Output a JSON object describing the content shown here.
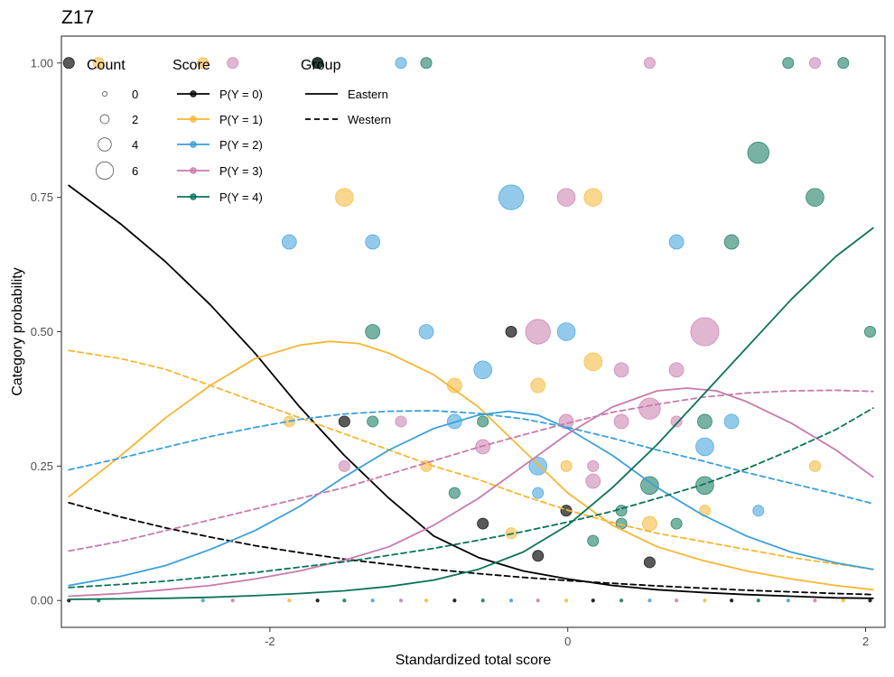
{
  "chart_data": {
    "type": "scatter",
    "title": "Z17",
    "xlabel": "Standardized total score",
    "ylabel": "Category probability",
    "xlim": [
      -3.4,
      2.13
    ],
    "ylim": [
      -0.05,
      1.05
    ],
    "x_ticks": [
      -2,
      0,
      2
    ],
    "x_tick_labels": [
      "-2",
      "0",
      "2"
    ],
    "y_ticks": [
      0,
      0.25,
      0.5,
      0.75,
      1
    ],
    "y_tick_labels": [
      "0.00",
      "0.25",
      "0.50",
      "0.75",
      "1.00"
    ],
    "grid": false,
    "legend_position": "top-left inside",
    "colors": {
      "P(Y = 0)": "#000000",
      "P(Y = 1)": "#F5B731",
      "P(Y = 2)": "#3A9FDB",
      "P(Y = 3)": "#C97AAA",
      "P(Y = 4)": "#0A7358"
    },
    "legend": {
      "count": {
        "title": "Count",
        "labels": [
          "0",
          "2",
          "4",
          "6"
        ]
      },
      "score": {
        "title": "Score",
        "labels": [
          "P(Y = 0)",
          "P(Y = 1)",
          "P(Y = 2)",
          "P(Y = 3)",
          "P(Y = 4)"
        ]
      },
      "group": {
        "title": "Group",
        "labels": [
          "Eastern",
          "Western"
        ]
      }
    },
    "curves": [
      {
        "score": "P(Y = 0)",
        "group": "Eastern",
        "x": [
          -3.35,
          -3.0,
          -2.7,
          -2.4,
          -2.1,
          -1.8,
          -1.5,
          -1.2,
          -0.9,
          -0.6,
          -0.3,
          0.0,
          0.3,
          0.6,
          0.9,
          1.2,
          1.5,
          1.8,
          2.05
        ],
        "y": [
          0.772,
          0.7,
          0.63,
          0.55,
          0.46,
          0.36,
          0.27,
          0.19,
          0.12,
          0.08,
          0.055,
          0.04,
          0.028,
          0.02,
          0.015,
          0.011,
          0.008,
          0.005,
          0.004
        ]
      },
      {
        "score": "P(Y = 0)",
        "group": "Western",
        "x": [
          -3.35,
          -3.0,
          -2.7,
          -2.4,
          -2.1,
          -1.8,
          -1.5,
          -1.2,
          -0.9,
          -0.6,
          -0.3,
          0.0,
          0.3,
          0.6,
          0.9,
          1.2,
          1.5,
          1.8,
          2.05
        ],
        "y": [
          0.182,
          0.155,
          0.135,
          0.118,
          0.102,
          0.089,
          0.077,
          0.067,
          0.058,
          0.05,
          0.043,
          0.037,
          0.032,
          0.027,
          0.023,
          0.019,
          0.016,
          0.013,
          0.011
        ]
      },
      {
        "score": "P(Y = 1)",
        "group": "Eastern",
        "x": [
          -3.35,
          -3.0,
          -2.7,
          -2.4,
          -2.1,
          -1.8,
          -1.6,
          -1.4,
          -1.2,
          -0.9,
          -0.6,
          -0.3,
          0.0,
          0.3,
          0.6,
          0.9,
          1.2,
          1.5,
          1.8,
          2.05
        ],
        "y": [
          0.193,
          0.27,
          0.34,
          0.4,
          0.45,
          0.475,
          0.482,
          0.478,
          0.46,
          0.42,
          0.36,
          0.28,
          0.2,
          0.14,
          0.1,
          0.075,
          0.055,
          0.04,
          0.028,
          0.02
        ]
      },
      {
        "score": "P(Y = 1)",
        "group": "Western",
        "x": [
          -3.35,
          -3.0,
          -2.7,
          -2.4,
          -2.1,
          -1.8,
          -1.5,
          -1.2,
          -0.9,
          -0.6,
          -0.3,
          0.0,
          0.3,
          0.6,
          0.9,
          1.2,
          1.5,
          1.8,
          2.05
        ],
        "y": [
          0.465,
          0.45,
          0.43,
          0.4,
          0.37,
          0.34,
          0.31,
          0.28,
          0.25,
          0.225,
          0.195,
          0.168,
          0.145,
          0.125,
          0.11,
          0.095,
          0.08,
          0.068,
          0.058
        ]
      },
      {
        "score": "P(Y = 2)",
        "group": "Eastern",
        "x": [
          -3.35,
          -3.0,
          -2.7,
          -2.4,
          -2.1,
          -1.8,
          -1.5,
          -1.2,
          -0.9,
          -0.6,
          -0.4,
          -0.2,
          0.0,
          0.3,
          0.6,
          0.9,
          1.2,
          1.5,
          1.8,
          2.05
        ],
        "y": [
          0.028,
          0.045,
          0.065,
          0.095,
          0.13,
          0.175,
          0.23,
          0.28,
          0.32,
          0.345,
          0.352,
          0.345,
          0.32,
          0.27,
          0.21,
          0.16,
          0.12,
          0.09,
          0.07,
          0.058
        ]
      },
      {
        "score": "P(Y = 2)",
        "group": "Western",
        "x": [
          -3.35,
          -3.0,
          -2.7,
          -2.4,
          -2.1,
          -1.8,
          -1.5,
          -1.2,
          -0.9,
          -0.6,
          -0.3,
          0.0,
          0.3,
          0.6,
          0.9,
          1.2,
          1.5,
          1.8,
          2.05
        ],
        "y": [
          0.243,
          0.265,
          0.285,
          0.305,
          0.322,
          0.337,
          0.347,
          0.352,
          0.353,
          0.348,
          0.338,
          0.322,
          0.302,
          0.28,
          0.26,
          0.238,
          0.218,
          0.198,
          0.18
        ]
      },
      {
        "score": "P(Y = 3)",
        "group": "Eastern",
        "x": [
          -3.35,
          -3.0,
          -2.7,
          -2.4,
          -2.1,
          -1.8,
          -1.5,
          -1.2,
          -0.9,
          -0.6,
          -0.3,
          0.0,
          0.3,
          0.6,
          0.8,
          1.0,
          1.2,
          1.5,
          1.8,
          2.05
        ],
        "y": [
          0.008,
          0.013,
          0.02,
          0.028,
          0.04,
          0.055,
          0.075,
          0.1,
          0.14,
          0.19,
          0.25,
          0.31,
          0.36,
          0.39,
          0.395,
          0.39,
          0.37,
          0.33,
          0.28,
          0.23
        ]
      },
      {
        "score": "P(Y = 3)",
        "group": "Western",
        "x": [
          -3.35,
          -3.0,
          -2.7,
          -2.4,
          -2.1,
          -1.8,
          -1.5,
          -1.2,
          -0.9,
          -0.6,
          -0.3,
          0.0,
          0.3,
          0.6,
          0.9,
          1.2,
          1.5,
          1.8,
          2.05
        ],
        "y": [
          0.092,
          0.11,
          0.13,
          0.15,
          0.17,
          0.19,
          0.21,
          0.235,
          0.26,
          0.285,
          0.308,
          0.33,
          0.35,
          0.365,
          0.378,
          0.386,
          0.39,
          0.391,
          0.389
        ]
      },
      {
        "score": "P(Y = 4)",
        "group": "Eastern",
        "x": [
          -3.35,
          -3.0,
          -2.7,
          -2.4,
          -2.1,
          -1.8,
          -1.5,
          -1.2,
          -0.9,
          -0.6,
          -0.3,
          0.0,
          0.3,
          0.6,
          0.9,
          1.2,
          1.5,
          1.8,
          2.05
        ],
        "y": [
          0.002,
          0.003,
          0.004,
          0.006,
          0.009,
          0.013,
          0.018,
          0.026,
          0.038,
          0.058,
          0.09,
          0.14,
          0.21,
          0.29,
          0.38,
          0.47,
          0.56,
          0.64,
          0.693
        ]
      },
      {
        "score": "P(Y = 4)",
        "group": "Western",
        "x": [
          -3.35,
          -3.0,
          -2.7,
          -2.4,
          -2.1,
          -1.8,
          -1.5,
          -1.2,
          -0.9,
          -0.6,
          -0.3,
          0.0,
          0.3,
          0.6,
          0.9,
          1.2,
          1.5,
          1.8,
          2.05
        ],
        "y": [
          0.024,
          0.03,
          0.036,
          0.044,
          0.052,
          0.062,
          0.072,
          0.084,
          0.097,
          0.112,
          0.128,
          0.146,
          0.166,
          0.19,
          0.215,
          0.245,
          0.28,
          0.318,
          0.358
        ]
      }
    ],
    "points": [
      {
        "score": "P(Y = 0)",
        "x": -3.35,
        "y": 1.0,
        "count": 1
      },
      {
        "score": "P(Y = 1)",
        "x": -3.15,
        "y": 1.0,
        "count": 1
      },
      {
        "score": "P(Y = 1)",
        "x": -2.45,
        "y": 1.0,
        "count": 1
      },
      {
        "score": "P(Y = 3)",
        "x": -2.25,
        "y": 1.0,
        "count": 1
      },
      {
        "score": "P(Y = 4)",
        "x": -1.68,
        "y": 1.0,
        "count": 1
      },
      {
        "score": "P(Y = 0)",
        "x": -1.68,
        "y": 1.0,
        "count": 1
      },
      {
        "score": "P(Y = 2)",
        "x": -1.12,
        "y": 1.0,
        "count": 1
      },
      {
        "score": "P(Y = 4)",
        "x": -0.95,
        "y": 1.0,
        "count": 1
      },
      {
        "score": "P(Y = 3)",
        "x": 0.55,
        "y": 1.0,
        "count": 1
      },
      {
        "score": "P(Y = 4)",
        "x": 1.48,
        "y": 1.0,
        "count": 1
      },
      {
        "score": "P(Y = 3)",
        "x": 1.66,
        "y": 1.0,
        "count": 1
      },
      {
        "score": "P(Y = 4)",
        "x": 1.85,
        "y": 1.0,
        "count": 1
      },
      {
        "score": "P(Y = 4)",
        "x": 1.28,
        "y": 0.833,
        "count": 4
      },
      {
        "score": "P(Y = 1)",
        "x": -1.5,
        "y": 0.75,
        "count": 3
      },
      {
        "score": "P(Y = 2)",
        "x": -0.38,
        "y": 0.75,
        "count": 5
      },
      {
        "score": "P(Y = 3)",
        "x": -0.01,
        "y": 0.75,
        "count": 3
      },
      {
        "score": "P(Y = 1)",
        "x": 0.17,
        "y": 0.75,
        "count": 3
      },
      {
        "score": "P(Y = 4)",
        "x": 1.66,
        "y": 0.75,
        "count": 3
      },
      {
        "score": "P(Y = 2)",
        "x": -1.87,
        "y": 0.667,
        "count": 2
      },
      {
        "score": "P(Y = 2)",
        "x": -1.31,
        "y": 0.667,
        "count": 2
      },
      {
        "score": "P(Y = 2)",
        "x": 0.73,
        "y": 0.667,
        "count": 2
      },
      {
        "score": "P(Y = 4)",
        "x": 1.1,
        "y": 0.667,
        "count": 2
      },
      {
        "score": "P(Y = 4)",
        "x": -1.31,
        "y": 0.5,
        "count": 2
      },
      {
        "score": "P(Y = 2)",
        "x": -0.95,
        "y": 0.5,
        "count": 2
      },
      {
        "score": "P(Y = 0)",
        "x": -0.38,
        "y": 0.5,
        "count": 1
      },
      {
        "score": "P(Y = 3)",
        "x": -0.2,
        "y": 0.5,
        "count": 5
      },
      {
        "score": "P(Y = 2)",
        "x": -0.01,
        "y": 0.5,
        "count": 3
      },
      {
        "score": "P(Y = 3)",
        "x": 0.92,
        "y": 0.5,
        "count": 6
      },
      {
        "score": "P(Y = 4)",
        "x": 2.03,
        "y": 0.5,
        "count": 1
      },
      {
        "score": "P(Y = 1)",
        "x": 0.17,
        "y": 0.444,
        "count": 3
      },
      {
        "score": "P(Y = 2)",
        "x": -0.57,
        "y": 0.429,
        "count": 3
      },
      {
        "score": "P(Y = 3)",
        "x": 0.36,
        "y": 0.429,
        "count": 2
      },
      {
        "score": "P(Y = 3)",
        "x": 0.73,
        "y": 0.429,
        "count": 2
      },
      {
        "score": "P(Y = 1)",
        "x": -0.76,
        "y": 0.4,
        "count": 2
      },
      {
        "score": "P(Y = 1)",
        "x": -0.2,
        "y": 0.4,
        "count": 2
      },
      {
        "score": "P(Y = 2)",
        "x": -0.76,
        "y": 0.333,
        "count": 2
      },
      {
        "score": "P(Y = 1)",
        "x": -1.87,
        "y": 0.333,
        "count": 1
      },
      {
        "score": "P(Y = 0)",
        "x": -1.5,
        "y": 0.333,
        "count": 1
      },
      {
        "score": "P(Y = 4)",
        "x": -1.31,
        "y": 0.333,
        "count": 1
      },
      {
        "score": "P(Y = 3)",
        "x": -1.12,
        "y": 0.333,
        "count": 1
      },
      {
        "score": "P(Y = 4)",
        "x": -0.57,
        "y": 0.333,
        "count": 1
      },
      {
        "score": "P(Y = 3)",
        "x": -0.01,
        "y": 0.333,
        "count": 2
      },
      {
        "score": "P(Y = 3)",
        "x": 0.36,
        "y": 0.333,
        "count": 2
      },
      {
        "score": "P(Y = 3)",
        "x": 0.55,
        "y": 0.357,
        "count": 4
      },
      {
        "score": "P(Y = 3)",
        "x": 0.73,
        "y": 0.333,
        "count": 1
      },
      {
        "score": "P(Y = 4)",
        "x": 0.92,
        "y": 0.333,
        "count": 2
      },
      {
        "score": "P(Y = 2)",
        "x": 1.1,
        "y": 0.333,
        "count": 2
      },
      {
        "score": "P(Y = 3)",
        "x": -0.57,
        "y": 0.286,
        "count": 2
      },
      {
        "score": "P(Y = 2)",
        "x": 0.92,
        "y": 0.286,
        "count": 3
      },
      {
        "score": "P(Y = 3)",
        "x": -1.5,
        "y": 0.25,
        "count": 1
      },
      {
        "score": "P(Y = 1)",
        "x": -0.95,
        "y": 0.25,
        "count": 1
      },
      {
        "score": "P(Y = 2)",
        "x": -0.2,
        "y": 0.25,
        "count": 3
      },
      {
        "score": "P(Y = 1)",
        "x": -0.01,
        "y": 0.25,
        "count": 1
      },
      {
        "score": "P(Y = 3)",
        "x": 0.17,
        "y": 0.25,
        "count": 1
      },
      {
        "score": "P(Y = 1)",
        "x": 1.66,
        "y": 0.25,
        "count": 1
      },
      {
        "score": "P(Y = 3)",
        "x": 0.17,
        "y": 0.222,
        "count": 2
      },
      {
        "score": "P(Y = 4)",
        "x": 0.55,
        "y": 0.214,
        "count": 3
      },
      {
        "score": "P(Y = 4)",
        "x": 0.92,
        "y": 0.214,
        "count": 3
      },
      {
        "score": "P(Y = 4)",
        "x": -0.76,
        "y": 0.2,
        "count": 1
      },
      {
        "score": "P(Y = 2)",
        "x": -0.2,
        "y": 0.2,
        "count": 1
      },
      {
        "score": "P(Y = 4)",
        "x": 0.36,
        "y": 0.167,
        "count": 1
      },
      {
        "score": "P(Y = 1)",
        "x": 0.92,
        "y": 0.167,
        "count": 1
      },
      {
        "score": "P(Y = 2)",
        "x": 1.28,
        "y": 0.167,
        "count": 1
      },
      {
        "score": "P(Y = 0)",
        "x": -0.01,
        "y": 0.167,
        "count": 1
      },
      {
        "score": "P(Y = 0)",
        "x": -0.57,
        "y": 0.143,
        "count": 1
      },
      {
        "score": "P(Y = 4)",
        "x": 0.36,
        "y": 0.143,
        "count": 1
      },
      {
        "score": "P(Y = 1)",
        "x": 0.55,
        "y": 0.143,
        "count": 2
      },
      {
        "score": "P(Y = 4)",
        "x": 0.73,
        "y": 0.143,
        "count": 1
      },
      {
        "score": "P(Y = 1)",
        "x": -0.38,
        "y": 0.125,
        "count": 1
      },
      {
        "score": "P(Y = 4)",
        "x": 0.17,
        "y": 0.111,
        "count": 1
      },
      {
        "score": "P(Y = 0)",
        "x": -0.2,
        "y": 0.083,
        "count": 1
      },
      {
        "score": "P(Y = 0)",
        "x": 0.55,
        "y": 0.071,
        "count": 1
      }
    ],
    "zero_points_x": [
      -3.35,
      -3.15,
      -2.45,
      -2.25,
      -1.87,
      -1.68,
      -1.5,
      -1.31,
      -1.12,
      -0.95,
      -0.76,
      -0.57,
      -0.38,
      -0.2,
      -0.01,
      0.17,
      0.36,
      0.55,
      0.73,
      0.92,
      1.1,
      1.28,
      1.48,
      1.66,
      1.85,
      2.03
    ]
  }
}
